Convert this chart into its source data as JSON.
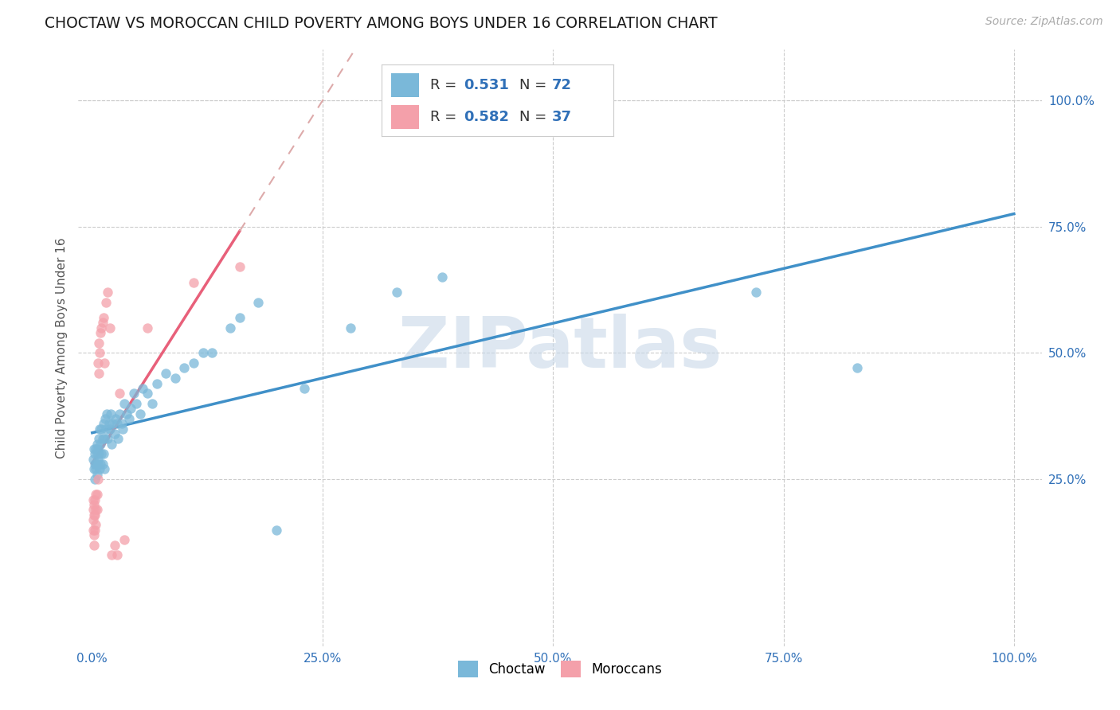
{
  "title": "CHOCTAW VS MOROCCAN CHILD POVERTY AMONG BOYS UNDER 16 CORRELATION CHART",
  "source": "Source: ZipAtlas.com",
  "ylabel": "Child Poverty Among Boys Under 16",
  "watermark": "ZIPatlas",
  "r1": "0.531",
  "n1": "72",
  "r2": "0.582",
  "n2": "37",
  "choctaw_color": "#7ab8d9",
  "moroccan_color": "#f4a0aa",
  "trendline_choctaw_color": "#4090c8",
  "trendline_moroccan_color": "#e8607a",
  "trendline_moroccan_dashed_color": "#ddaaaa",
  "label_color": "#3070b8",
  "background_color": "#ffffff",
  "grid_color": "#cccccc",
  "watermark_color": "#c8d8e8",
  "choctaw_x": [
    0.001,
    0.002,
    0.002,
    0.003,
    0.003,
    0.003,
    0.004,
    0.004,
    0.004,
    0.005,
    0.005,
    0.005,
    0.006,
    0.006,
    0.006,
    0.007,
    0.007,
    0.008,
    0.008,
    0.009,
    0.009,
    0.01,
    0.01,
    0.011,
    0.011,
    0.012,
    0.012,
    0.013,
    0.013,
    0.014,
    0.015,
    0.016,
    0.017,
    0.018,
    0.019,
    0.02,
    0.021,
    0.022,
    0.024,
    0.025,
    0.027,
    0.028,
    0.03,
    0.032,
    0.033,
    0.035,
    0.037,
    0.04,
    0.042,
    0.045,
    0.048,
    0.052,
    0.055,
    0.06,
    0.065,
    0.07,
    0.08,
    0.09,
    0.1,
    0.11,
    0.12,
    0.13,
    0.15,
    0.16,
    0.18,
    0.2,
    0.23,
    0.28,
    0.33,
    0.38,
    0.72,
    0.83
  ],
  "choctaw_y": [
    0.29,
    0.31,
    0.27,
    0.3,
    0.28,
    0.25,
    0.27,
    0.31,
    0.28,
    0.26,
    0.3,
    0.32,
    0.28,
    0.31,
    0.29,
    0.33,
    0.3,
    0.27,
    0.35,
    0.28,
    0.32,
    0.3,
    0.35,
    0.33,
    0.28,
    0.36,
    0.3,
    0.33,
    0.27,
    0.37,
    0.35,
    0.38,
    0.33,
    0.36,
    0.35,
    0.38,
    0.32,
    0.36,
    0.34,
    0.37,
    0.36,
    0.33,
    0.38,
    0.36,
    0.35,
    0.4,
    0.38,
    0.37,
    0.39,
    0.42,
    0.4,
    0.38,
    0.43,
    0.42,
    0.4,
    0.44,
    0.46,
    0.45,
    0.47,
    0.48,
    0.5,
    0.5,
    0.55,
    0.57,
    0.6,
    0.15,
    0.43,
    0.55,
    0.62,
    0.65,
    0.62,
    0.47
  ],
  "moroccan_x": [
    0.001,
    0.001,
    0.001,
    0.001,
    0.002,
    0.002,
    0.002,
    0.002,
    0.003,
    0.003,
    0.003,
    0.004,
    0.004,
    0.004,
    0.005,
    0.005,
    0.006,
    0.006,
    0.007,
    0.007,
    0.008,
    0.009,
    0.01,
    0.011,
    0.012,
    0.013,
    0.015,
    0.017,
    0.019,
    0.021,
    0.024,
    0.027,
    0.03,
    0.035,
    0.06,
    0.11,
    0.16
  ],
  "moroccan_y": [
    0.19,
    0.21,
    0.17,
    0.15,
    0.2,
    0.18,
    0.14,
    0.12,
    0.21,
    0.18,
    0.15,
    0.22,
    0.19,
    0.16,
    0.22,
    0.19,
    0.25,
    0.48,
    0.46,
    0.52,
    0.5,
    0.54,
    0.55,
    0.56,
    0.57,
    0.48,
    0.6,
    0.62,
    0.55,
    0.1,
    0.12,
    0.1,
    0.42,
    0.13,
    0.55,
    0.64,
    0.67
  ],
  "xlim": [
    0.0,
    1.0
  ],
  "ylim": [
    0.0,
    1.0
  ],
  "xticks": [
    0.0,
    0.25,
    0.5,
    0.75,
    1.0
  ],
  "xlabels": [
    "0.0%",
    "25.0%",
    "50.0%",
    "75.0%",
    "100.0%"
  ],
  "yticks": [
    0.25,
    0.5,
    0.75,
    1.0
  ],
  "ylabels": [
    "25.0%",
    "50.0%",
    "75.0%",
    "100.0%"
  ]
}
